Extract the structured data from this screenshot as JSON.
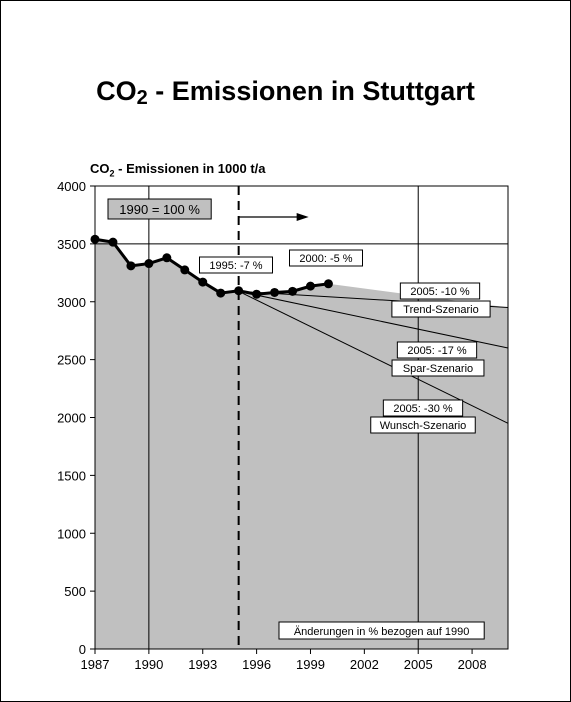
{
  "chart_data": {
    "type": "line",
    "title_main": "CO",
    "title_sub": "2",
    "title_rest": " - Emissionen in Stuttgart",
    "ylabel_main": "CO",
    "ylabel_sub": "2",
    "ylabel_rest": " - Emissionen in 1000 t/a",
    "ylim": [
      0,
      4000
    ],
    "xlim": [
      1987,
      2010
    ],
    "yticks": [
      0,
      500,
      1000,
      1500,
      2000,
      2500,
      3000,
      3500,
      4000
    ],
    "xticks": [
      1987,
      1990,
      1993,
      1996,
      1999,
      2002,
      2005,
      2008
    ],
    "series": [
      {
        "x": [
          1987,
          1988,
          1989,
          1990,
          1991,
          1992,
          1993,
          1994,
          1995,
          1996,
          1997,
          1998,
          1999,
          2000
        ],
        "values": [
          3540,
          3515,
          3310,
          3330,
          3380,
          3275,
          3170,
          3075,
          3095,
          3065,
          3080,
          3090,
          3135,
          3155
        ]
      }
    ],
    "scenarios": [
      {
        "name": "Trend-Szenario",
        "label": "2005: -10 %",
        "x": [
          1995,
          2010
        ],
        "values": [
          3090,
          2950
        ]
      },
      {
        "name": "Spar-Szenario",
        "label": "2005: -17 %",
        "x": [
          1995,
          2010
        ],
        "values": [
          3090,
          2600
        ]
      },
      {
        "name": "Wunsch-Szenario",
        "label": "2005: -30 %",
        "x": [
          1995,
          2010
        ],
        "values": [
          3090,
          1950
        ]
      }
    ],
    "reference_line": {
      "y": 3500
    },
    "vertical_lines": [
      1990,
      2005
    ],
    "dashed_line": {
      "x": 1995
    },
    "annotations": {
      "base": "1990 = 100 %",
      "a1995": "1995: -7 %",
      "a2000": "2000: -5 %",
      "note": "Änderungen in % bezogen auf 1990"
    },
    "grid": false
  }
}
